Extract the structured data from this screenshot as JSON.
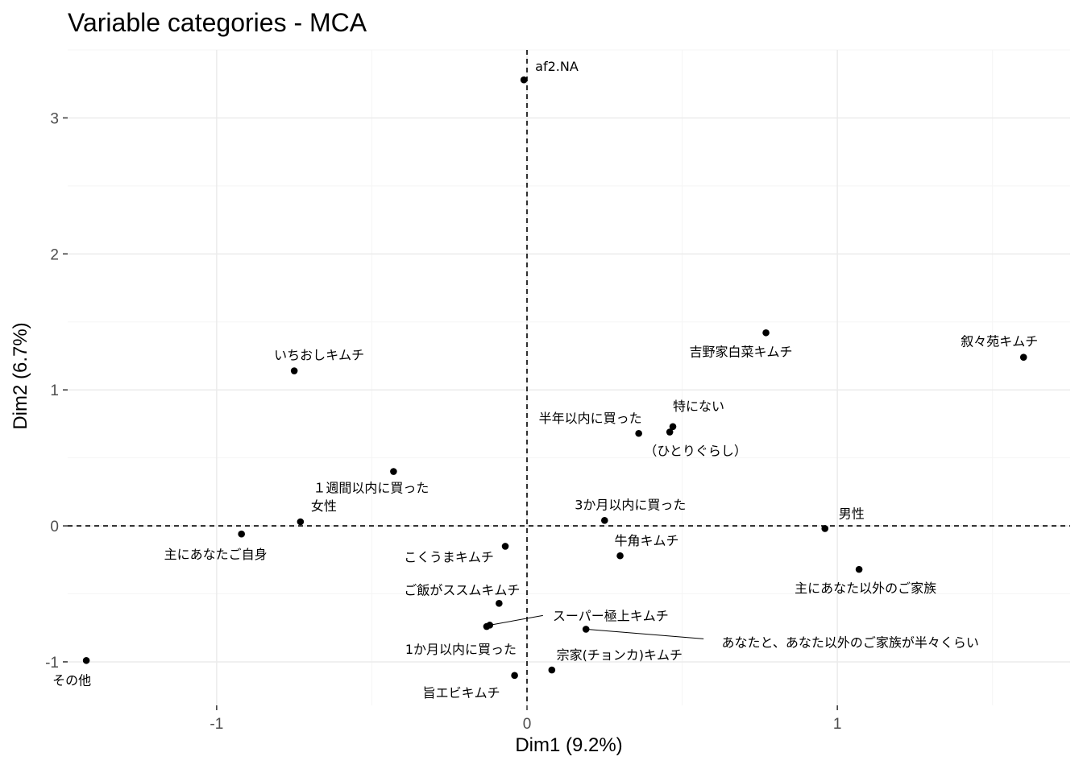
{
  "chart_data": {
    "type": "scatter",
    "title": "Variable categories - MCA",
    "xlabel": "Dim1 (9.2%)",
    "ylabel": "Dim2 (6.7%)",
    "xlim": [
      -1.48,
      1.75
    ],
    "ylim": [
      -1.32,
      3.5
    ],
    "x_ticks": [
      -1,
      0,
      1
    ],
    "x_tick_labels": [
      "-1",
      "0",
      "1"
    ],
    "y_ticks": [
      -1,
      0,
      1,
      2,
      3
    ],
    "y_tick_labels": [
      "-1",
      "0",
      "1",
      "2",
      "3"
    ],
    "grid": true,
    "reference_lines": {
      "x": 0,
      "y": 0,
      "style": "dashed"
    },
    "point_color": "#000000",
    "grid_major_color": "#ebebeb",
    "grid_minor_color": "#f5f5f5",
    "points": [
      {
        "label": "af2.NA",
        "x": -0.01,
        "y": 3.28
      },
      {
        "label": "叙々苑キムチ",
        "x": 1.6,
        "y": 1.24
      },
      {
        "label": "吉野家白菜キムチ",
        "x": 0.77,
        "y": 1.42
      },
      {
        "label": "いちおしキムチ",
        "x": -0.75,
        "y": 1.14
      },
      {
        "label": "特にない",
        "x": 0.47,
        "y": 0.73
      },
      {
        "label": "半年以内に買った",
        "x": 0.36,
        "y": 0.68
      },
      {
        "label": "（ひとりぐらし）",
        "x": 0.46,
        "y": 0.69
      },
      {
        "label": "１週間以内に買った",
        "x": -0.43,
        "y": 0.4
      },
      {
        "label": "女性",
        "x": -0.73,
        "y": 0.03
      },
      {
        "label": "3か月以内に買った",
        "x": 0.25,
        "y": 0.04
      },
      {
        "label": "男性",
        "x": 0.96,
        "y": -0.02
      },
      {
        "label": "主にあなたご自身",
        "x": -0.92,
        "y": -0.06
      },
      {
        "label": "牛角キムチ",
        "x": 0.3,
        "y": -0.22
      },
      {
        "label": "こくうまキムチ",
        "x": -0.07,
        "y": -0.15
      },
      {
        "label": "主にあなた以外のご家族",
        "x": 1.07,
        "y": -0.32
      },
      {
        "label": "ご飯がススムキムチ",
        "x": -0.09,
        "y": -0.57
      },
      {
        "label": "スーパー極上キムチ",
        "x": -0.12,
        "y": -0.73
      },
      {
        "label": "1か月以内に買った",
        "x": -0.13,
        "y": -0.74
      },
      {
        "label": "あなたと、あなた以外のご家族が半々くらい",
        "x": 0.19,
        "y": -0.76
      },
      {
        "label": "宗家(チョンカ)キムチ",
        "x": 0.08,
        "y": -1.06
      },
      {
        "label": "旨エビキムチ",
        "x": -0.04,
        "y": -1.1
      },
      {
        "label": "その他",
        "x": -1.42,
        "y": -0.99
      }
    ]
  }
}
